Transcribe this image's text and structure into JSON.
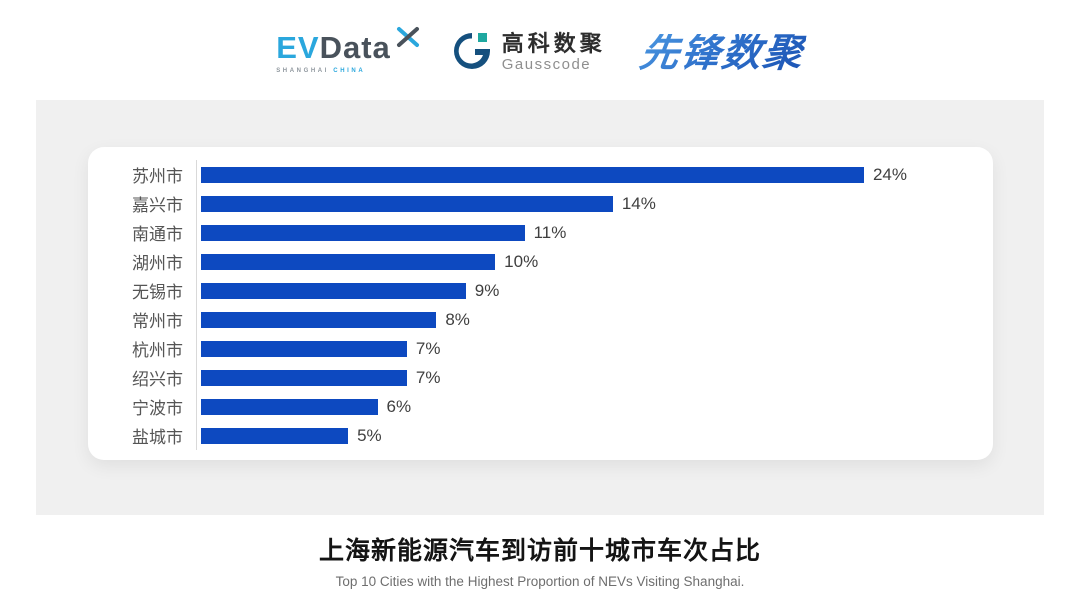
{
  "header": {
    "evdata": {
      "ev": "EV",
      "data": "Data",
      "sub_shanghai": "SHANGHAI",
      "sub_china": "CHINA"
    },
    "gausscode": {
      "name_cn": "高科数聚",
      "name_en": "Gausscode"
    },
    "pioneer": {
      "name": "先锋数聚"
    }
  },
  "chart_data": {
    "type": "bar",
    "orientation": "horizontal",
    "categories": [
      "苏州市",
      "嘉兴市",
      "南通市",
      "湖州市",
      "无锡市",
      "常州市",
      "杭州市",
      "绍兴市",
      "宁波市",
      "盐城市"
    ],
    "values": [
      24,
      14,
      11,
      10,
      9,
      8,
      7,
      7,
      6,
      5
    ],
    "value_labels": [
      "24%",
      "14%",
      "11%",
      "10%",
      "9%",
      "8%",
      "7%",
      "7%",
      "6%",
      "5%"
    ],
    "unit": "%",
    "xlim": [
      0,
      24
    ],
    "bar_color": "#0d49c0",
    "axis_line_color": "#d9d9d9",
    "grid": false,
    "legend": "none",
    "title": "上海新能源汽车到访前十城市车次占比",
    "subtitle": "Top 10 Cities with the Highest Proportion of  NEVs Visiting Shanghai."
  },
  "footer": {
    "title": "上海新能源汽车到访前十城市车次占比",
    "subtitle": "Top 10 Cities with the Highest Proportion of  NEVs Visiting Shanghai."
  },
  "colors": {
    "bar_blue": "#0d49c0",
    "panel_gray": "#f0f0f0",
    "evdata_cyan": "#2aa7dd",
    "evdata_dark": "#49525b",
    "gauss_navy": "#15507e",
    "gauss_teal": "#1fa8a0",
    "pioneer_blue": "#2f72cc"
  }
}
